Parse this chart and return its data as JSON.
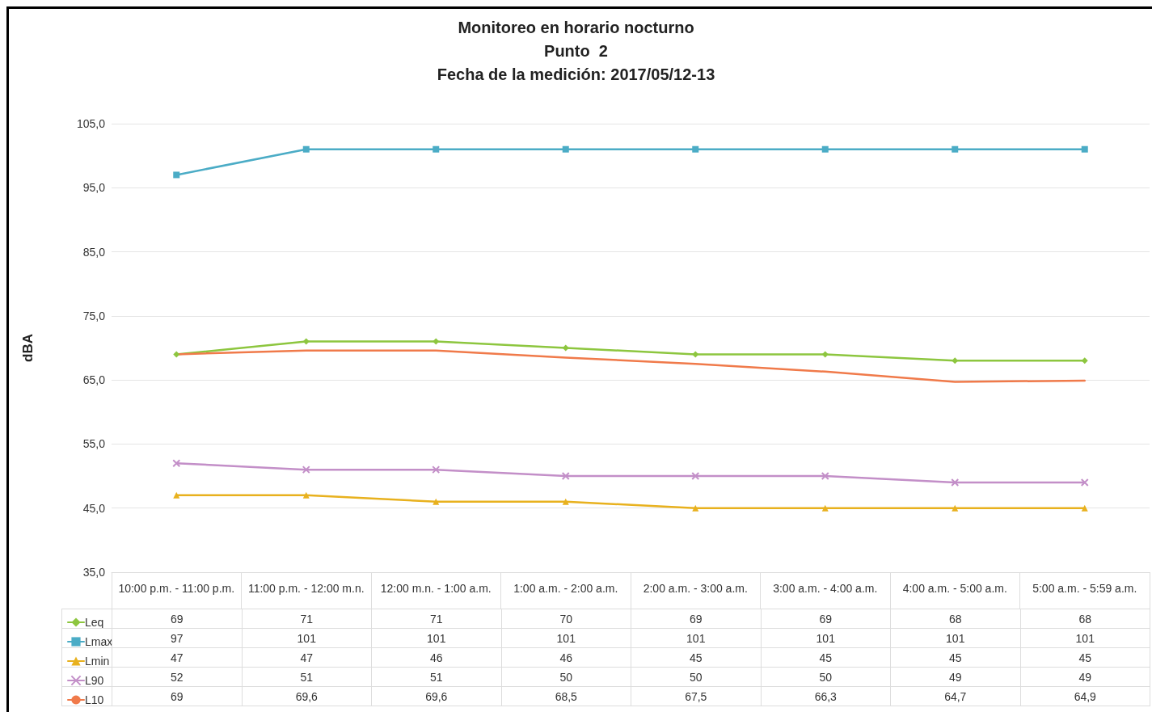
{
  "chart_data": {
    "type": "line",
    "title": "Monitoreo en horario nocturno\nPunto  2\nFecha de la medición: 2017/05/12-13",
    "ylabel": "dBA",
    "categories": [
      "10:00 p.m. - 11:00 p.m.",
      "11:00 p.m. - 12:00 m.n.",
      "12:00 m.n. - 1:00 a.m.",
      "1:00 a.m. - 2:00 a.m.",
      "2:00 a.m. - 3:00 a.m.",
      "3:00 a.m. - 4:00 a.m.",
      "4:00 a.m. - 5:00 a.m.",
      "5:00 a.m. - 5:59 a.m."
    ],
    "series": [
      {
        "name": "Leq",
        "color": "#8dc63f",
        "marker": "diamond",
        "values": [
          69,
          71,
          71,
          70,
          69,
          69,
          68,
          68
        ],
        "value_labels": [
          "69",
          "71",
          "71",
          "70",
          "69",
          "69",
          "68",
          "68"
        ]
      },
      {
        "name": "Lmax",
        "color": "#4bacc6",
        "marker": "square",
        "values": [
          97,
          101,
          101,
          101,
          101,
          101,
          101,
          101
        ],
        "value_labels": [
          "97",
          "101",
          "101",
          "101",
          "101",
          "101",
          "101",
          "101"
        ]
      },
      {
        "name": "Lmin",
        "color": "#e8b11e",
        "marker": "triangle",
        "values": [
          47,
          47,
          46,
          46,
          45,
          45,
          45,
          45
        ],
        "value_labels": [
          "47",
          "47",
          "46",
          "46",
          "45",
          "45",
          "45",
          "45"
        ]
      },
      {
        "name": "L90",
        "color": "#c38fc8",
        "marker": "cross",
        "values": [
          52,
          51,
          51,
          50,
          50,
          50,
          49,
          49
        ],
        "value_labels": [
          "52",
          "51",
          "51",
          "50",
          "50",
          "50",
          "49",
          "49"
        ]
      },
      {
        "name": "L10",
        "color": "#f07a4a",
        "marker": "none",
        "values": [
          69,
          69.6,
          69.6,
          68.5,
          67.5,
          66.3,
          64.7,
          64.9
        ],
        "value_labels": [
          "69",
          "69,6",
          "69,6",
          "68,5",
          "67,5",
          "66,3",
          "64,7",
          "64,9"
        ]
      }
    ],
    "ylim": [
      35,
      105
    ],
    "yticks": [
      {
        "value": 35,
        "label": "35,0"
      },
      {
        "value": 45,
        "label": "45,0"
      },
      {
        "value": 55,
        "label": "55,0"
      },
      {
        "value": 65,
        "label": "65,0"
      },
      {
        "value": 75,
        "label": "75,0"
      },
      {
        "value": 85,
        "label": "85,0"
      },
      {
        "value": 95,
        "label": "95,0"
      },
      {
        "value": 105,
        "label": "105,0"
      }
    ],
    "grid": "y",
    "legend": "bottom left",
    "line_style": "solid"
  }
}
